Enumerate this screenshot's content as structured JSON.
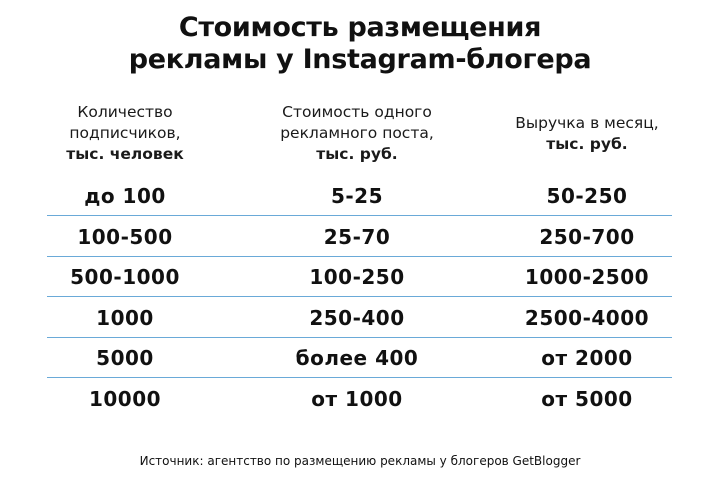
{
  "title": {
    "line1": "Стоимость размещения",
    "line2": "рекламы у Instagram-блогера"
  },
  "columns": [
    {
      "line1": "Количество",
      "line2": "подписчиков,",
      "line3": "тыс. человек"
    },
    {
      "line1": "Стоимость одного",
      "line2": "рекламного поста,",
      "line3": "тыс. руб."
    },
    {
      "line1": "Выручка в месяц,",
      "line2": "тыс. руб."
    }
  ],
  "rows": [
    [
      "до 100",
      "5-25",
      "50-250"
    ],
    [
      "100-500",
      "25-70",
      "250-700"
    ],
    [
      "500-1000",
      "100-250",
      "1000-2500"
    ],
    [
      "1000",
      "250-400",
      "2500-4000"
    ],
    [
      "5000",
      "более 400",
      "от 2000"
    ],
    [
      "10000",
      "от 1000",
      "от 5000"
    ]
  ],
  "source": "Источник: агентство по размещению рекламы у блогеров GetBlogger",
  "colors": {
    "separator": "#6aaad8",
    "text": "#111111"
  }
}
